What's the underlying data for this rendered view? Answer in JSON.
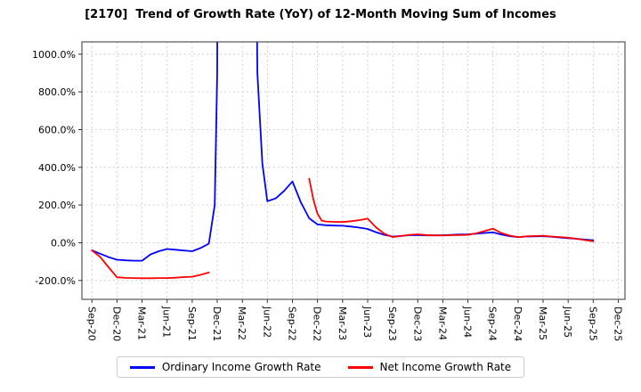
{
  "chart_data": {
    "type": "line",
    "title": "[2170]  Trend of Growth Rate (YoY) of 12-Month Moving Sum of Incomes",
    "xlabel": "",
    "ylabel": "",
    "grid": true,
    "legend_position": "bottom",
    "ylim": [
      -300,
      1065
    ],
    "xlim": [
      -1.2,
      63.8
    ],
    "y_ticks": [
      -200,
      0,
      200,
      400,
      600,
      800,
      1000
    ],
    "y_tick_labels": [
      "-200.0%",
      "0.0%",
      "200.0%",
      "400.0%",
      "600.0%",
      "800.0%",
      "1000.0%"
    ],
    "x_tick_positions": [
      0,
      3,
      6,
      9,
      12,
      15,
      18,
      21,
      24,
      27,
      30,
      33,
      36,
      39,
      42,
      45,
      48,
      51,
      54,
      57,
      60,
      63
    ],
    "x_tick_labels": [
      "Sep-20",
      "Dec-20",
      "Mar-21",
      "Jun-21",
      "Sep-21",
      "Dec-21",
      "Mar-22",
      "Jun-22",
      "Sep-22",
      "Dec-22",
      "Mar-23",
      "Jun-23",
      "Sep-23",
      "Dec-23",
      "Mar-24",
      "Jun-24",
      "Sep-24",
      "Dec-24",
      "Mar-25",
      "Jun-25",
      "Sep-25",
      "Dec-25"
    ],
    "colors": {
      "grid": "#c8c8c8",
      "frame": "#333333",
      "background": "#ffffff"
    },
    "series": [
      {
        "name": "Ordinary Income Growth Rate",
        "color": "#0000ff",
        "segments": [
          [
            [
              0,
              -40
            ],
            [
              1,
              -58
            ],
            [
              2,
              -76
            ],
            [
              3,
              -90
            ],
            [
              4,
              -93
            ],
            [
              5,
              -95
            ],
            [
              6,
              -95
            ],
            [
              7,
              -62
            ],
            [
              8,
              -45
            ],
            [
              9,
              -33
            ],
            [
              10,
              -37
            ],
            [
              11,
              -41
            ],
            [
              12,
              -45
            ],
            [
              13,
              -28
            ],
            [
              14,
              -5
            ],
            [
              14.7,
              200
            ],
            [
              15,
              900
            ],
            [
              15.15,
              4000
            ],
            [
              19.2,
              4000
            ],
            [
              19.8,
              900
            ],
            [
              20.4,
              420
            ],
            [
              21,
              220
            ],
            [
              22,
              235
            ],
            [
              23,
              275
            ],
            [
              24,
              325
            ],
            [
              25,
              215
            ],
            [
              26,
              130
            ],
            [
              27,
              97
            ],
            [
              28,
              93
            ],
            [
              29,
              91
            ],
            [
              30,
              90
            ],
            [
              31,
              86
            ],
            [
              32,
              80
            ],
            [
              33,
              73
            ],
            [
              34,
              56
            ],
            [
              35,
              42
            ],
            [
              36,
              33
            ],
            [
              37,
              36
            ],
            [
              38,
              40
            ],
            [
              39,
              41
            ],
            [
              40,
              39
            ],
            [
              41,
              39
            ],
            [
              42,
              40
            ],
            [
              43,
              42
            ],
            [
              44,
              44
            ],
            [
              45,
              45
            ],
            [
              46,
              48
            ],
            [
              47,
              52
            ],
            [
              48,
              55
            ],
            [
              49,
              44
            ],
            [
              50,
              35
            ],
            [
              51,
              30
            ],
            [
              52,
              33
            ],
            [
              53,
              34
            ],
            [
              54,
              35
            ],
            [
              55,
              32
            ],
            [
              56,
              28
            ],
            [
              57,
              24
            ],
            [
              58,
              21
            ],
            [
              59,
              17
            ],
            [
              60,
              13
            ]
          ]
        ]
      },
      {
        "name": "Net Income Growth Rate",
        "color": "#ff0000",
        "segments": [
          [
            [
              0,
              -40
            ],
            [
              1,
              -75
            ],
            [
              2,
              -130
            ],
            [
              3,
              -183
            ],
            [
              4,
              -186
            ],
            [
              5,
              -187
            ],
            [
              6,
              -188
            ],
            [
              7,
              -188
            ],
            [
              8,
              -187
            ],
            [
              9,
              -187
            ],
            [
              10,
              -185
            ],
            [
              11,
              -182
            ],
            [
              12,
              -180
            ],
            [
              13,
              -170
            ],
            [
              14,
              -158
            ]
          ],
          [
            [
              26,
              340
            ],
            [
              26.5,
              230
            ],
            [
              27,
              155
            ],
            [
              27.5,
              118
            ],
            [
              28,
              113
            ],
            [
              29,
              111
            ],
            [
              30,
              110
            ],
            [
              31,
              114
            ],
            [
              32,
              120
            ],
            [
              33,
              128
            ],
            [
              34,
              82
            ],
            [
              35,
              48
            ],
            [
              36,
              30
            ],
            [
              37,
              36
            ],
            [
              38,
              42
            ],
            [
              39,
              45
            ],
            [
              40,
              41
            ],
            [
              41,
              39
            ],
            [
              42,
              38
            ],
            [
              43,
              40
            ],
            [
              44,
              41
            ],
            [
              45,
              42
            ],
            [
              46,
              50
            ],
            [
              47,
              62
            ],
            [
              48,
              75
            ],
            [
              49,
              52
            ],
            [
              50,
              38
            ],
            [
              51,
              30
            ],
            [
              52,
              34
            ],
            [
              53,
              36
            ],
            [
              54,
              37
            ],
            [
              55,
              33
            ],
            [
              56,
              30
            ],
            [
              57,
              27
            ],
            [
              58,
              21
            ],
            [
              59,
              14
            ],
            [
              60,
              8
            ]
          ]
        ]
      }
    ]
  }
}
